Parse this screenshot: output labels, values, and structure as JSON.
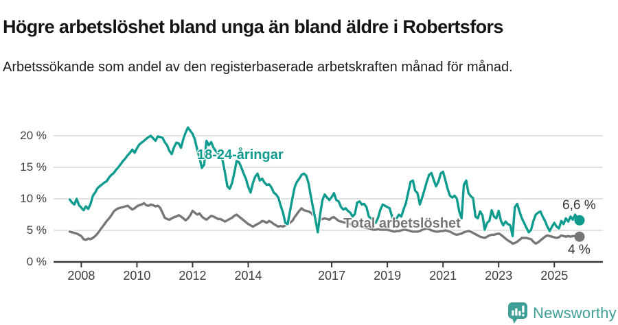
{
  "header": {
    "title": "Högre arbetslöshet bland unga än bland äldre i Robertsfors",
    "subtitle": "Arbetssökande som andel av den registerbaserade arbetskraften månad för månad."
  },
  "chart_data": {
    "type": "line",
    "unit": "%",
    "interval": "monthly",
    "x_start": "2007-08",
    "x_end": "2025-11",
    "ylim": [
      0,
      22
    ],
    "y_ticks": [
      0,
      5,
      10,
      15,
      20
    ],
    "x_tick_years": [
      2008,
      2010,
      2012,
      2014,
      2017,
      2019,
      2021,
      2023,
      2025
    ],
    "grid": true,
    "colors": {
      "young": "#0f9b8e",
      "total": "#767676",
      "axis": "#383838",
      "gridline": "#d9d9d9"
    },
    "series": [
      {
        "name": "18-24-åringar",
        "color": "#0f9b8e",
        "end_label": "6,6 %",
        "end_value": 6.6,
        "values": [
          9.9,
          9.4,
          9.1,
          10.0,
          9.0,
          8.6,
          8.2,
          8.8,
          8.4,
          9.2,
          10.5,
          11.0,
          11.7,
          12.0,
          12.3,
          12.6,
          12.8,
          13.4,
          13.8,
          14.1,
          14.6,
          15.0,
          15.5,
          16.0,
          16.4,
          16.9,
          17.3,
          17.8,
          17.3,
          18.0,
          18.6,
          18.9,
          19.2,
          19.5,
          19.8,
          20.0,
          19.6,
          19.2,
          19.9,
          19.8,
          19.7,
          19.0,
          18.5,
          17.6,
          17.1,
          18.2,
          18.9,
          18.8,
          18.1,
          19.5,
          20.5,
          21.3,
          20.8,
          20.3,
          19.4,
          17.8,
          16.5,
          14.9,
          15.4,
          19.2,
          18.5,
          19.0,
          18.1,
          17.6,
          17.2,
          16.8,
          16.0,
          14.1,
          12.0,
          11.6,
          12.5,
          14.1,
          16.0,
          15.8,
          15.0,
          14.0,
          13.2,
          11.9,
          11.0,
          12.5,
          13.5,
          14.0,
          12.9,
          13.2,
          12.6,
          12.2,
          12.3,
          11.8,
          11.0,
          10.7,
          10.2,
          8.9,
          7.8,
          6.2,
          6.0,
          8.0,
          10.0,
          11.8,
          12.7,
          13.2,
          13.8,
          14.0,
          13.7,
          12.5,
          10.4,
          8.5,
          6.7,
          4.7,
          7.5,
          9.8,
          10.7,
          10.2,
          9.8,
          10.3,
          10.9,
          9.8,
          9.6,
          8.7,
          8.3,
          8.5,
          8.1,
          7.8,
          7.2,
          7.6,
          9.4,
          9.6,
          9.1,
          9.2,
          8.7,
          7.2,
          6.9,
          6.4,
          6.2,
          7.0,
          8.3,
          9.1,
          8.9,
          8.7,
          8.5,
          7.2,
          6.5,
          6.9,
          7.5,
          7.2,
          8.3,
          9.3,
          11.0,
          12.7,
          12.9,
          11.3,
          10.9,
          9.1,
          10.2,
          11.4,
          12.7,
          13.8,
          14.1,
          13.0,
          12.0,
          12.7,
          14.0,
          14.3,
          13.0,
          11.6,
          10.5,
          10.2,
          10.5,
          10.0,
          8.0,
          6.9,
          12.2,
          12.9,
          10.9,
          10.4,
          10.1,
          7.2,
          6.9,
          8.0,
          7.4,
          5.1,
          6.2,
          6.5,
          8.2,
          7.2,
          6.9,
          8.1,
          6.5,
          5.8,
          6.4,
          6.0,
          5.8,
          4.1,
          8.7,
          9.2,
          8.0,
          6.9,
          6.2,
          5.4,
          4.7,
          5.1,
          6.5,
          7.5,
          7.8,
          8.0,
          7.2,
          6.5,
          5.6,
          4.9,
          5.6,
          6.2,
          5.6,
          5.3,
          6.5,
          6.0,
          6.9,
          6.4,
          7.2,
          6.7,
          7.5,
          6.6
        ]
      },
      {
        "name": "Total arbetslöshet",
        "color": "#767676",
        "end_label": "4 %",
        "end_value": 4.0,
        "values": [
          4.8,
          4.7,
          4.6,
          4.5,
          4.3,
          4.1,
          3.6,
          3.5,
          3.7,
          3.6,
          3.8,
          4.1,
          4.5,
          5.0,
          5.5,
          6.0,
          6.5,
          6.9,
          7.4,
          8.0,
          8.3,
          8.5,
          8.6,
          8.7,
          8.8,
          8.9,
          8.6,
          8.3,
          8.5,
          8.8,
          9.0,
          9.1,
          9.3,
          9.0,
          8.9,
          9.1,
          9.0,
          8.8,
          8.9,
          8.6,
          7.8,
          7.0,
          6.8,
          6.7,
          6.9,
          7.1,
          7.2,
          7.4,
          7.2,
          6.9,
          6.6,
          6.9,
          7.4,
          8.1,
          7.8,
          7.5,
          7.7,
          7.2,
          6.9,
          6.7,
          7.0,
          7.3,
          7.2,
          7.0,
          6.8,
          6.8,
          6.6,
          6.4,
          6.6,
          6.8,
          7.0,
          7.3,
          7.5,
          7.2,
          6.9,
          6.6,
          6.3,
          6.0,
          5.8,
          5.6,
          5.8,
          6.0,
          6.2,
          6.5,
          6.4,
          6.2,
          6.5,
          6.3,
          6.0,
          5.8,
          5.6,
          5.7,
          5.6,
          5.8,
          6.0,
          6.2,
          6.5,
          7.1,
          7.6,
          8.1,
          8.5,
          8.2,
          8.1,
          8.0,
          7.8,
          7.4,
          7.0,
          6.7,
          6.7,
          6.8,
          6.9,
          6.8,
          6.7,
          7.0,
          7.1,
          6.8,
          6.5,
          6.4,
          6.3,
          6.2,
          6.1,
          6.0,
          5.9,
          5.8,
          5.7,
          5.7,
          5.6,
          5.5,
          5.4,
          5.3,
          5.2,
          5.1,
          5.1,
          5.2,
          5.1,
          5.1,
          5.1,
          5.1,
          5.0,
          4.9,
          4.8,
          4.9,
          4.9,
          5.0,
          5.1,
          5.1,
          5.0,
          4.9,
          4.8,
          4.8,
          4.8,
          4.9,
          5.1,
          5.2,
          5.3,
          5.2,
          5.0,
          4.9,
          4.8,
          4.8,
          4.9,
          4.9,
          5.0,
          4.9,
          4.8,
          4.6,
          4.4,
          4.3,
          4.4,
          4.5,
          4.7,
          4.8,
          4.9,
          4.8,
          4.6,
          4.4,
          4.2,
          4.0,
          3.9,
          3.8,
          4.0,
          4.2,
          4.3,
          4.3,
          4.4,
          4.5,
          4.3,
          4.0,
          3.7,
          3.4,
          3.2,
          2.9,
          3.0,
          3.2,
          3.5,
          3.8,
          3.8,
          3.8,
          3.7,
          3.6,
          3.2,
          2.9,
          3.1,
          3.4,
          3.7,
          4.0,
          4.2,
          4.1,
          4.0,
          3.9,
          3.8,
          3.9,
          4.2,
          4.1,
          4.0,
          4.1,
          4.0,
          4.1,
          4.1,
          4.0
        ]
      }
    ]
  },
  "footer": {
    "brand": "Newsworthy"
  }
}
